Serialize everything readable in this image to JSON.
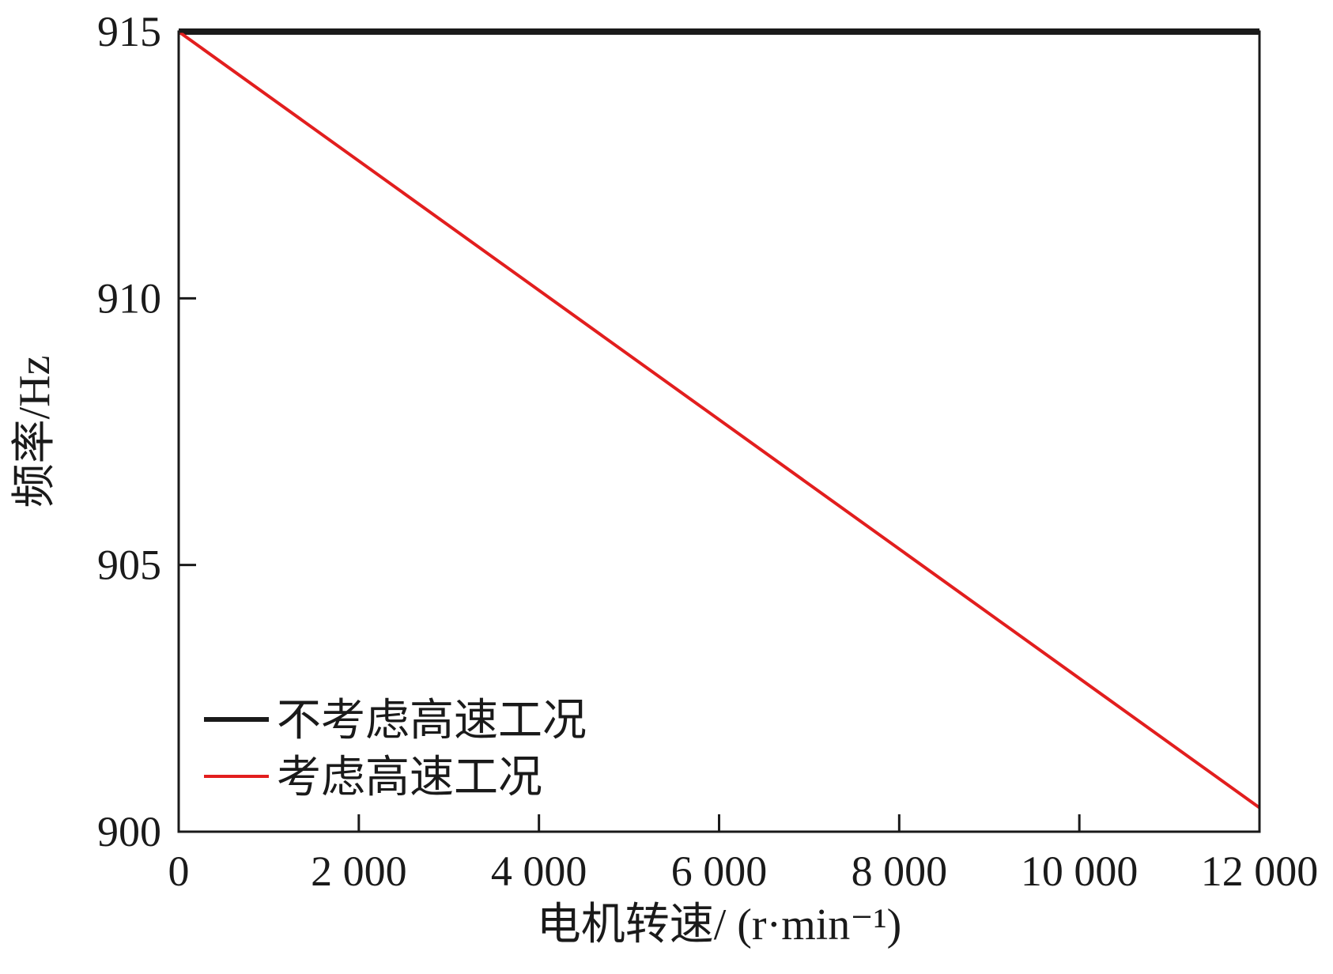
{
  "chart_data": {
    "type": "line",
    "title": "",
    "xlabel": "电机转速/ (r·min⁻¹)",
    "ylabel": "频率/Hz",
    "xlim": [
      0,
      12000
    ],
    "ylim": [
      900,
      915
    ],
    "x_ticks": [
      {
        "value": 0,
        "label": "0"
      },
      {
        "value": 2000,
        "label": "2 000"
      },
      {
        "value": 4000,
        "label": "4 000"
      },
      {
        "value": 6000,
        "label": "6 000"
      },
      {
        "value": 8000,
        "label": "8 000"
      },
      {
        "value": 10000,
        "label": "10 000"
      },
      {
        "value": 12000,
        "label": "12 000"
      }
    ],
    "y_ticks": [
      {
        "value": 900,
        "label": "900"
      },
      {
        "value": 905,
        "label": "905"
      },
      {
        "value": 910,
        "label": "910"
      },
      {
        "value": 915,
        "label": "915"
      }
    ],
    "grid": false,
    "legend_position": "bottom-left",
    "series": [
      {
        "name": "不考虑高速工况",
        "color": "#1a1a1a",
        "x": [
          0,
          12000
        ],
        "y": [
          915,
          915
        ]
      },
      {
        "name": "考虑高速工况",
        "color": "#e21e1e",
        "x": [
          0,
          12000
        ],
        "y": [
          915,
          900.45
        ]
      }
    ]
  }
}
